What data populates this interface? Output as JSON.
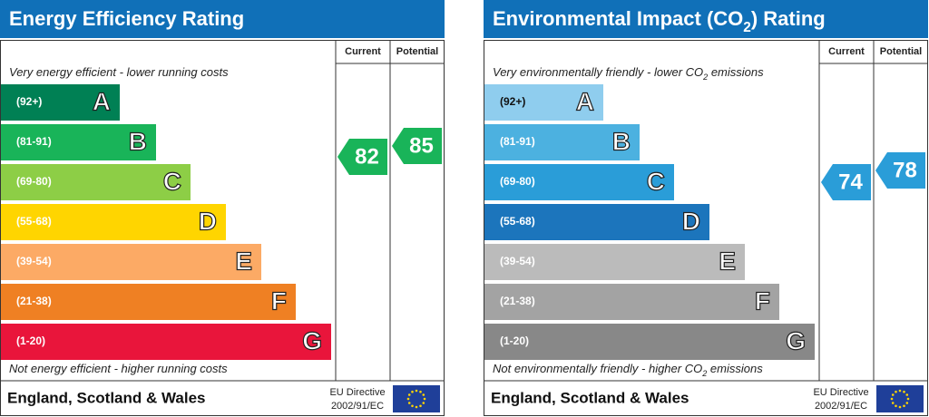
{
  "panels": [
    {
      "title": [
        "Energy Efficiency Rating"
      ],
      "columns": [
        "Current",
        "Potential"
      ],
      "top_note": [
        "Very energy efficient - lower running costs"
      ],
      "bottom_note": [
        "Not energy efficient - higher running costs"
      ],
      "bands": [
        {
          "range": "(92+)",
          "letter": "A",
          "color": "#008054",
          "text_color": "#ffffff"
        },
        {
          "range": "(81-91)",
          "letter": "B",
          "color": "#19b459",
          "text_color": "#ffffff"
        },
        {
          "range": "(69-80)",
          "letter": "C",
          "color": "#8dce46",
          "text_color": "#ffffff"
        },
        {
          "range": "(55-68)",
          "letter": "D",
          "color": "#ffd500",
          "text_color": "#ffffff"
        },
        {
          "range": "(39-54)",
          "letter": "E",
          "color": "#fcaa65",
          "text_color": "#ffffff"
        },
        {
          "range": "(21-38)",
          "letter": "F",
          "color": "#ef8023",
          "text_color": "#ffffff"
        },
        {
          "range": "(1-20)",
          "letter": "G",
          "color": "#e9153b",
          "text_color": "#ffffff"
        }
      ],
      "current": 82,
      "potential": 85,
      "rating_color": "#19b459",
      "region": "England, Scotland & Wales",
      "directive": [
        "EU Directive",
        "2002/91/EC"
      ]
    },
    {
      "title": [
        "Environmental Impact (CO",
        "2",
        ") Rating"
      ],
      "columns": [
        "Current",
        "Potential"
      ],
      "top_note": [
        "Very environmentally friendly - lower CO",
        "2",
        " emissions"
      ],
      "bottom_note": [
        "Not environmentally friendly - higher CO",
        "2",
        " emissions"
      ],
      "bands": [
        {
          "range": "(92+)",
          "letter": "A",
          "color": "#8fcdee",
          "text_color": "#111111"
        },
        {
          "range": "(81-91)",
          "letter": "B",
          "color": "#4cb1e0",
          "text_color": "#ffffff"
        },
        {
          "range": "(69-80)",
          "letter": "C",
          "color": "#2a9dd8",
          "text_color": "#ffffff"
        },
        {
          "range": "(55-68)",
          "letter": "D",
          "color": "#1c75bc",
          "text_color": "#ffffff"
        },
        {
          "range": "(39-54)",
          "letter": "E",
          "color": "#bbbbbb",
          "text_color": "#ffffff"
        },
        {
          "range": "(21-38)",
          "letter": "F",
          "color": "#a3a3a3",
          "text_color": "#ffffff"
        },
        {
          "range": "(1-20)",
          "letter": "G",
          "color": "#888888",
          "text_color": "#ffffff"
        }
      ],
      "current": 74,
      "potential": 78,
      "rating_color": "#2a9dd8",
      "region": "England, Scotland & Wales",
      "directive": [
        "EU Directive",
        "2002/91/EC"
      ]
    }
  ]
}
